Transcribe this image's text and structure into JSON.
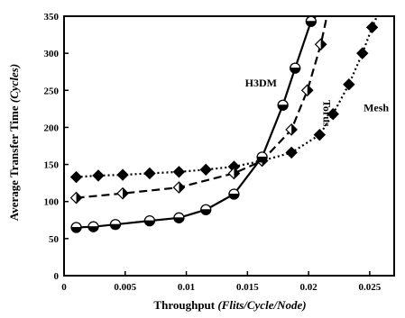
{
  "chart_data": {
    "type": "line",
    "title": "",
    "xlabel": "Throughput",
    "xlabel_unit": "(Flits/Cycle/Node)",
    "ylabel": "Average Transfer Time",
    "ylabel_unit": "(Cycles)",
    "xlim": [
      0,
      0.027
    ],
    "ylim": [
      0,
      350
    ],
    "xticks": [
      0,
      0.005,
      0.01,
      0.015,
      0.02,
      0.025
    ],
    "xtick_labels": [
      "0",
      "0.005",
      "0.01",
      "0.015",
      "0.02",
      "0.025"
    ],
    "yticks": [
      0,
      50,
      100,
      150,
      200,
      250,
      300,
      350
    ],
    "ytick_labels": [
      "0",
      "50",
      "100",
      "150",
      "200",
      "250",
      "300",
      "350"
    ],
    "grid": false,
    "legend": "inline-labels",
    "series": [
      {
        "name": "Mesh",
        "line_style": "dotted",
        "marker": "diamond-filled",
        "points": [
          {
            "x": 0.001,
            "y": 133
          },
          {
            "x": 0.0028,
            "y": 135
          },
          {
            "x": 0.0048,
            "y": 136
          },
          {
            "x": 0.007,
            "y": 138
          },
          {
            "x": 0.0094,
            "y": 140
          },
          {
            "x": 0.0116,
            "y": 143
          },
          {
            "x": 0.0139,
            "y": 147
          },
          {
            "x": 0.0162,
            "y": 155
          },
          {
            "x": 0.0186,
            "y": 166
          },
          {
            "x": 0.0209,
            "y": 190
          },
          {
            "x": 0.022,
            "y": 218
          },
          {
            "x": 0.0233,
            "y": 258
          },
          {
            "x": 0.0244,
            "y": 300
          },
          {
            "x": 0.0252,
            "y": 335
          },
          {
            "x": 0.0256,
            "y": 350
          }
        ]
      },
      {
        "name": "Torus",
        "line_style": "dashed",
        "marker": "diamond-half",
        "points": [
          {
            "x": 0.001,
            "y": 105
          },
          {
            "x": 0.0048,
            "y": 111
          },
          {
            "x": 0.0094,
            "y": 119
          },
          {
            "x": 0.0139,
            "y": 138
          },
          {
            "x": 0.0162,
            "y": 155
          },
          {
            "x": 0.0186,
            "y": 197
          },
          {
            "x": 0.0199,
            "y": 250
          },
          {
            "x": 0.021,
            "y": 312
          },
          {
            "x": 0.0215,
            "y": 350
          }
        ]
      },
      {
        "name": "H3DM",
        "line_style": "solid",
        "marker": "circle-half",
        "points": [
          {
            "x": 0.001,
            "y": 65
          },
          {
            "x": 0.0024,
            "y": 66
          },
          {
            "x": 0.0042,
            "y": 69
          },
          {
            "x": 0.007,
            "y": 74
          },
          {
            "x": 0.0094,
            "y": 78
          },
          {
            "x": 0.0116,
            "y": 89
          },
          {
            "x": 0.0139,
            "y": 110
          },
          {
            "x": 0.0162,
            "y": 160
          },
          {
            "x": 0.0179,
            "y": 230
          },
          {
            "x": 0.0189,
            "y": 280
          },
          {
            "x": 0.0202,
            "y": 343
          },
          {
            "x": 0.0206,
            "y": 350
          }
        ]
      }
    ],
    "annotations": [
      {
        "text": "H3DM",
        "x": 0.0148,
        "y": 255,
        "rotate": 0
      },
      {
        "text": "Torus",
        "x": 0.0212,
        "y": 237,
        "rotate": 90
      },
      {
        "text": "Mesh",
        "x": 0.0245,
        "y": 222,
        "rotate": 0
      }
    ]
  }
}
